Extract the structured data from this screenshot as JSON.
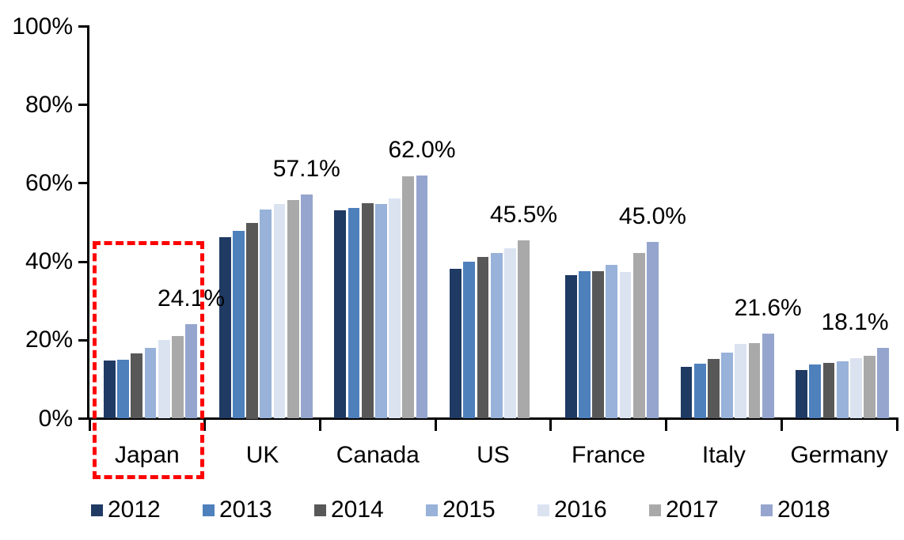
{
  "chart_data": {
    "type": "bar",
    "title": "",
    "xlabel": "",
    "ylabel": "",
    "categories": [
      "Japan",
      "UK",
      "Canada",
      "US",
      "France",
      "Italy",
      "Germany"
    ],
    "series": [
      {
        "name": "2012",
        "color": "#1F3A63",
        "values": [
          14.8,
          46.3,
          53.2,
          38.2,
          36.6,
          13.2,
          12.4
        ]
      },
      {
        "name": "2013",
        "color": "#4E80BC",
        "values": [
          15.0,
          47.9,
          53.7,
          40.0,
          37.7,
          14.1,
          13.9
        ]
      },
      {
        "name": "2014",
        "color": "#585858",
        "values": [
          16.6,
          50.0,
          55.0,
          41.2,
          37.7,
          15.2,
          14.3
        ]
      },
      {
        "name": "2015",
        "color": "#98B2D9",
        "values": [
          18.0,
          53.3,
          54.7,
          42.3,
          39.3,
          16.8,
          14.7
        ]
      },
      {
        "name": "2016",
        "color": "#DBE3F1",
        "values": [
          20.0,
          54.7,
          56.1,
          43.5,
          37.4,
          19.0,
          15.4
        ]
      },
      {
        "name": "2017",
        "color": "#A9A9A9",
        "values": [
          21.0,
          55.7,
          61.7,
          45.5,
          42.3,
          19.2,
          16.0
        ]
      },
      {
        "name": "2018",
        "color": "#95A5CE",
        "values": [
          24.1,
          57.1,
          62.0,
          null,
          45.0,
          21.6,
          18.1
        ]
      }
    ],
    "data_labels": [
      "24.1%",
      "57.1%",
      "62.0%",
      "45.5%",
      "45.0%",
      "21.6%",
      "18.1%"
    ],
    "y_axis": {
      "tick_labels": [
        "100%",
        "80%",
        "60%",
        "40%",
        "20%",
        "0%"
      ],
      "tick_values": [
        100,
        80,
        60,
        40,
        20,
        0
      ],
      "ylim": [
        0,
        100
      ],
      "grid": false
    },
    "legend_position": "bottom",
    "legend_entries": [
      "2012",
      "2013",
      "2014",
      "2015",
      "2016",
      "2017",
      "2018"
    ],
    "highlight": {
      "category": "Japan",
      "shape": "dashed-rectangle",
      "color": "#FF0000"
    }
  }
}
